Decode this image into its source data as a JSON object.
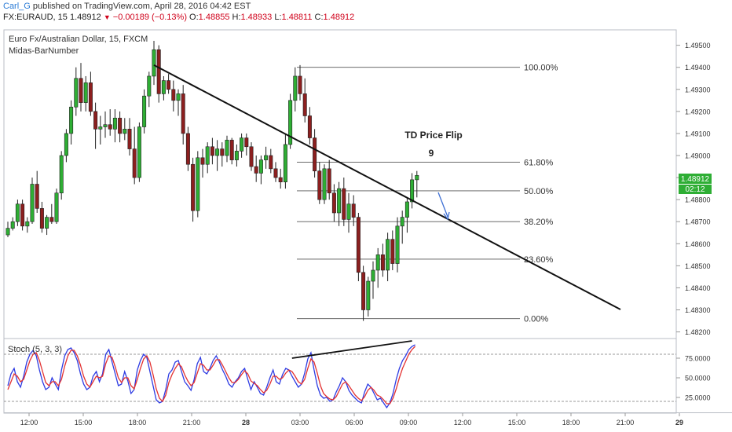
{
  "header": {
    "user": "Carl_G",
    "published": "published on TradingView.com, April 28, 2016 04:42 EST",
    "symbol": "FX:EURAUD, 15",
    "last": "1.48912",
    "change": "−0.00189 (−0.13%)",
    "o_label": "O:",
    "o": "1.48855",
    "h_label": "H:",
    "h": "1.48933",
    "l_label": "L:",
    "l": "1.48811",
    "c_label": "C:",
    "c": "1.48912"
  },
  "pane": {
    "title": "Euro Fx/Australian Dollar, 15, FXCM",
    "indicator": "Midas-BarNumber",
    "stoch_label": "Stoch (5, 3, 3)"
  },
  "price_badge": {
    "price": "1.48912",
    "countdown": "02:12"
  },
  "colors": {
    "up": "#2eae34",
    "down": "#8c1f1f",
    "trend": "#111111",
    "stoch_k": "#2d3be3",
    "stoch_d": "#e33232",
    "badge": "#2eae34",
    "arrow": "#3d6fd4"
  },
  "chart_data": [
    {
      "type": "candlestick",
      "title": "Euro Fx/Australian Dollar, 15, FXCM",
      "x_ticks": [
        "12:00",
        "15:00",
        "18:00",
        "21:00",
        "28",
        "03:00",
        "06:00",
        "09:00",
        "12:00",
        "15:00",
        "18:00",
        "21:00",
        "29"
      ],
      "y_ticks": [
        "1.49500",
        "1.49400",
        "1.49300",
        "1.49200",
        "1.49100",
        "1.49000",
        "1.48900",
        "1.48800",
        "1.48700",
        "1.48600",
        "1.48500",
        "1.48400",
        "1.48300",
        "1.48200"
      ],
      "ylim": [
        1.4817,
        1.4957
      ],
      "candles": [
        [
          1.4864,
          1.487,
          1.4863,
          1.4867
        ],
        [
          1.4867,
          1.4872,
          1.4866,
          1.487
        ],
        [
          1.487,
          1.488,
          1.4868,
          1.4878
        ],
        [
          1.4878,
          1.488,
          1.4866,
          1.4868
        ],
        [
          1.4868,
          1.4872,
          1.4865,
          1.487
        ],
        [
          1.487,
          1.489,
          1.4869,
          1.4887
        ],
        [
          1.4887,
          1.4893,
          1.4874,
          1.4876
        ],
        [
          1.4876,
          1.4879,
          1.4865,
          1.4867
        ],
        [
          1.4867,
          1.4873,
          1.4864,
          1.4872
        ],
        [
          1.4872,
          1.4878,
          1.4869,
          1.487
        ],
        [
          1.487,
          1.4885,
          1.4869,
          1.4883
        ],
        [
          1.4883,
          1.4902,
          1.488,
          1.49
        ],
        [
          1.49,
          1.4912,
          1.4897,
          1.491
        ],
        [
          1.491,
          1.4925,
          1.4905,
          1.4922
        ],
        [
          1.4922,
          1.494,
          1.4918,
          1.4935
        ],
        [
          1.4935,
          1.4942,
          1.492,
          1.4924
        ],
        [
          1.4924,
          1.4936,
          1.492,
          1.4933
        ],
        [
          1.4933,
          1.4938,
          1.4918,
          1.492
        ],
        [
          1.492,
          1.4924,
          1.4903,
          1.4912
        ],
        [
          1.4912,
          1.4918,
          1.4905,
          1.4913
        ],
        [
          1.4913,
          1.492,
          1.4908,
          1.4914
        ],
        [
          1.4914,
          1.4921,
          1.4909,
          1.4912
        ],
        [
          1.4912,
          1.4921,
          1.4906,
          1.4917
        ],
        [
          1.4917,
          1.492,
          1.4906,
          1.491
        ],
        [
          1.491,
          1.4917,
          1.4907,
          1.4912
        ],
        [
          1.4912,
          1.4917,
          1.49,
          1.4903
        ],
        [
          1.4903,
          1.4913,
          1.4887,
          1.489
        ],
        [
          1.489,
          1.4915,
          1.4888,
          1.4913
        ],
        [
          1.4913,
          1.493,
          1.491,
          1.4927
        ],
        [
          1.4927,
          1.4938,
          1.4922,
          1.4936
        ],
        [
          1.4936,
          1.4952,
          1.4932,
          1.4948
        ],
        [
          1.4948,
          1.495,
          1.4924,
          1.4928
        ],
        [
          1.4928,
          1.4936,
          1.4925,
          1.4934
        ],
        [
          1.4934,
          1.4937,
          1.4928,
          1.493
        ],
        [
          1.493,
          1.4934,
          1.492,
          1.4925
        ],
        [
          1.4925,
          1.493,
          1.4918,
          1.4928
        ],
        [
          1.4928,
          1.4932,
          1.4905,
          1.491
        ],
        [
          1.491,
          1.4913,
          1.4893,
          1.4896
        ],
        [
          1.4896,
          1.4899,
          1.487,
          1.4875
        ],
        [
          1.4875,
          1.4902,
          1.4872,
          1.4899
        ],
        [
          1.4899,
          1.4903,
          1.489,
          1.4896
        ],
        [
          1.4896,
          1.4906,
          1.4892,
          1.4904
        ],
        [
          1.4904,
          1.4908,
          1.4896,
          1.49
        ],
        [
          1.49,
          1.4907,
          1.4893,
          1.4903
        ],
        [
          1.4903,
          1.4906,
          1.4895,
          1.49
        ],
        [
          1.49,
          1.4909,
          1.4897,
          1.4907
        ],
        [
          1.4907,
          1.4908,
          1.4896,
          1.4898
        ],
        [
          1.4898,
          1.4905,
          1.4895,
          1.4902
        ],
        [
          1.4902,
          1.491,
          1.4899,
          1.4908
        ],
        [
          1.4908,
          1.491,
          1.49,
          1.4904
        ],
        [
          1.4904,
          1.4906,
          1.4893,
          1.4895
        ],
        [
          1.4895,
          1.49,
          1.4888,
          1.4892
        ],
        [
          1.4892,
          1.49,
          1.4887,
          1.4898
        ],
        [
          1.4898,
          1.4904,
          1.4894,
          1.49
        ],
        [
          1.49,
          1.4903,
          1.4892,
          1.4894
        ],
        [
          1.4894,
          1.4897,
          1.4888,
          1.489
        ],
        [
          1.489,
          1.4894,
          1.4885,
          1.4888
        ],
        [
          1.4888,
          1.491,
          1.4885,
          1.4905
        ],
        [
          1.4905,
          1.4928,
          1.4903,
          1.4925
        ],
        [
          1.4925,
          1.494,
          1.492,
          1.4936
        ],
        [
          1.4936,
          1.4941,
          1.4925,
          1.4928
        ],
        [
          1.4928,
          1.4935,
          1.4915,
          1.4918
        ],
        [
          1.4918,
          1.4922,
          1.4905,
          1.4908
        ],
        [
          1.4908,
          1.4912,
          1.489,
          1.4893
        ],
        [
          1.4893,
          1.4897,
          1.4878,
          1.488
        ],
        [
          1.488,
          1.4896,
          1.4878,
          1.4894
        ],
        [
          1.4894,
          1.4898,
          1.488,
          1.4883
        ],
        [
          1.4883,
          1.4887,
          1.487,
          1.4874
        ],
        [
          1.4874,
          1.4888,
          1.4868,
          1.4885
        ],
        [
          1.4885,
          1.489,
          1.4868,
          1.4871
        ],
        [
          1.4871,
          1.4883,
          1.4865,
          1.4878
        ],
        [
          1.4878,
          1.4882,
          1.4868,
          1.4872
        ],
        [
          1.4872,
          1.4874,
          1.4843,
          1.4847
        ],
        [
          1.4847,
          1.485,
          1.4825,
          1.483
        ],
        [
          1.483,
          1.4845,
          1.4827,
          1.4843
        ],
        [
          1.4843,
          1.4852,
          1.4835,
          1.4848
        ],
        [
          1.4848,
          1.4858,
          1.484,
          1.4855
        ],
        [
          1.4855,
          1.486,
          1.4845,
          1.4848
        ],
        [
          1.4848,
          1.4865,
          1.4843,
          1.4862
        ],
        [
          1.4862,
          1.4866,
          1.4848,
          1.4851
        ],
        [
          1.4851,
          1.4872,
          1.4847,
          1.4868
        ],
        [
          1.4868,
          1.4875,
          1.486,
          1.4872
        ],
        [
          1.4872,
          1.4881,
          1.4865,
          1.4879
        ],
        [
          1.4879,
          1.4892,
          1.4876,
          1.4889
        ],
        [
          1.4889,
          1.4893,
          1.4881,
          1.4891
        ]
      ],
      "trendline": [
        [
          1.4941,
          30
        ],
        [
          1.483,
          84
        ]
      ],
      "fib_levels": [
        {
          "label": "100.00%",
          "price": 1.494
        },
        {
          "label": "61.80%",
          "price": 1.4897
        },
        {
          "label": "50.00%",
          "price": 1.4884
        },
        {
          "label": "38.20%",
          "price": 1.487
        },
        {
          "label": "23.60%",
          "price": 1.4853
        },
        {
          "label": "0.00%",
          "price": 1.4826
        }
      ],
      "annotations": [
        "TD Price Flip",
        "9"
      ]
    },
    {
      "type": "line",
      "title": "Stoch (5, 3, 3)",
      "y_ticks": [
        "75.0000",
        "50.0000",
        "25.0000"
      ],
      "ylim": [
        5,
        100
      ],
      "levels": [
        80,
        20
      ],
      "series": [
        {
          "values": [
            40,
            55,
            62,
            45,
            38,
            52,
            70,
            80,
            85,
            78,
            60,
            45,
            35,
            38,
            50,
            42,
            35,
            60,
            78,
            86,
            88,
            82,
            72,
            55,
            42,
            35,
            38,
            52,
            58,
            45,
            55,
            80,
            86,
            70,
            55,
            40,
            42,
            58,
            46,
            30,
            35,
            60,
            72,
            80,
            76,
            58,
            40,
            22,
            18,
            20,
            35,
            55,
            60,
            70,
            72,
            58,
            45,
            40,
            34,
            48,
            68,
            76,
            58,
            55,
            62,
            72,
            78,
            70,
            60,
            52,
            42,
            38,
            45,
            50,
            58,
            62,
            48,
            35,
            45,
            38,
            30,
            28,
            38,
            50,
            60,
            45,
            42,
            54,
            62,
            60,
            52,
            45,
            38,
            42,
            56,
            74,
            82,
            60,
            40,
            28,
            24,
            25,
            20,
            22,
            32,
            40,
            50,
            45,
            34,
            28,
            24,
            20,
            18,
            32,
            42,
            38,
            30,
            22,
            24,
            18,
            12,
            18,
            30,
            48,
            62,
            72,
            78,
            86,
            90,
            92
          ]
        },
        {
          "values": [
            35,
            45,
            55,
            52,
            45,
            48,
            60,
            72,
            80,
            82,
            72,
            58,
            44,
            40,
            45,
            45,
            40,
            48,
            65,
            78,
            85,
            85,
            78,
            66,
            52,
            42,
            38,
            45,
            52,
            50,
            52,
            68,
            78,
            76,
            64,
            50,
            44,
            50,
            50,
            40,
            36,
            48,
            62,
            74,
            78,
            70,
            54,
            36,
            24,
            20,
            28,
            44,
            54,
            62,
            68,
            64,
            54,
            46,
            40,
            44,
            56,
            68,
            66,
            60,
            60,
            66,
            73,
            73,
            66,
            58,
            50,
            44,
            44,
            48,
            54,
            59,
            55,
            46,
            43,
            40,
            35,
            31,
            34,
            42,
            52,
            52,
            48,
            50,
            56,
            60,
            58,
            52,
            45,
            42,
            48,
            62,
            74,
            70,
            56,
            40,
            30,
            26,
            23,
            22,
            26,
            34,
            42,
            45,
            40,
            34,
            28,
            24,
            21,
            26,
            34,
            38,
            34,
            28,
            26,
            22,
            17,
            17,
            24,
            36,
            50,
            62,
            71,
            80,
            86,
            90
          ]
        }
      ],
      "trendline": [
        [
          75,
          90
        ],
        [
          97,
          128
        ]
      ]
    }
  ]
}
